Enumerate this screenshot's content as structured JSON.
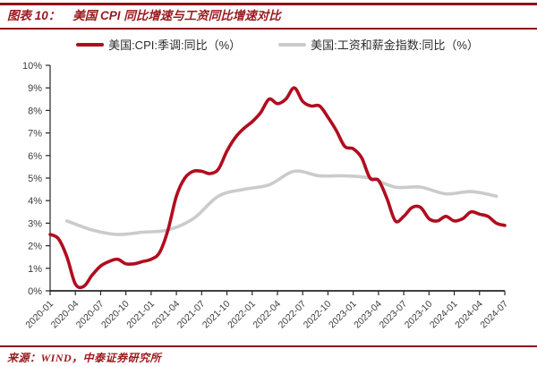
{
  "title": {
    "prefix": "图表 10：",
    "text": "美国 CPI 同比增速与工资同比增速对比"
  },
  "legend": [
    {
      "label": "美国:CPI:季调:同比（%）",
      "color": "#b00d1f"
    },
    {
      "label": "美国:工资和薪金指数:同比（%）",
      "color": "#cbcbcb"
    }
  ],
  "source": "来源：WIND，中泰证券研究所",
  "colors": {
    "accent_dark_red": "#8e1316",
    "title_text": "#9a181c",
    "cpi_line": "#b00d1f",
    "wage_line": "#cbcbcb",
    "axis_line": "#262626",
    "tick_label": "#3c3c3c"
  },
  "chart_data": {
    "type": "line",
    "title": "美国 CPI 同比增速与工资同比增速对比",
    "xlabel": "",
    "ylabel": "",
    "ylim": [
      0,
      10
    ],
    "grid": false,
    "legend_position": "top",
    "y_tick_labels": [
      "0%",
      "1%",
      "2%",
      "3%",
      "4%",
      "5%",
      "6%",
      "7%",
      "8%",
      "9%",
      "10%"
    ],
    "x_tick_labels": [
      "2020-01",
      "2020-04",
      "2020-07",
      "2020-10",
      "2021-01",
      "2021-04",
      "2021-07",
      "2021-10",
      "2022-01",
      "2022-04",
      "2022-07",
      "2022-10",
      "2023-01",
      "2023-04",
      "2023-07",
      "2023-10",
      "2024-01",
      "2024-04",
      "2024-07"
    ],
    "x_axis_note": "monthly index, 2020-01 = 0 through 2024-07 = 54",
    "months_total": 55,
    "series": [
      {
        "id": "cpi-line",
        "name": "美国:CPI:季调:同比（%）",
        "color": "#b00d1f",
        "start_month_index": 0,
        "month_step": 1,
        "values": [
          2.5,
          2.3,
          1.5,
          0.3,
          0.2,
          0.7,
          1.1,
          1.3,
          1.4,
          1.2,
          1.2,
          1.3,
          1.4,
          1.7,
          2.7,
          4.2,
          5.0,
          5.3,
          5.3,
          5.2,
          5.4,
          6.2,
          6.8,
          7.2,
          7.5,
          7.9,
          8.5,
          8.3,
          8.5,
          9.0,
          8.4,
          8.2,
          8.2,
          7.7,
          7.1,
          6.4,
          6.3,
          5.9,
          5.0,
          4.9,
          4.1,
          3.1,
          3.3,
          3.7,
          3.7,
          3.2,
          3.1,
          3.3,
          3.1,
          3.2,
          3.5,
          3.4,
          3.3,
          3.0,
          2.9
        ]
      },
      {
        "id": "wage-line",
        "name": "美国:工资和薪金指数:同比（%）",
        "color": "#cbcbcb",
        "start_month_index": 2,
        "month_step": 3,
        "values": [
          3.1,
          2.7,
          2.5,
          2.6,
          2.7,
          3.2,
          4.2,
          4.5,
          4.7,
          5.3,
          5.1,
          5.1,
          5.0,
          4.6,
          4.6,
          4.3,
          4.4,
          4.2
        ]
      }
    ]
  }
}
